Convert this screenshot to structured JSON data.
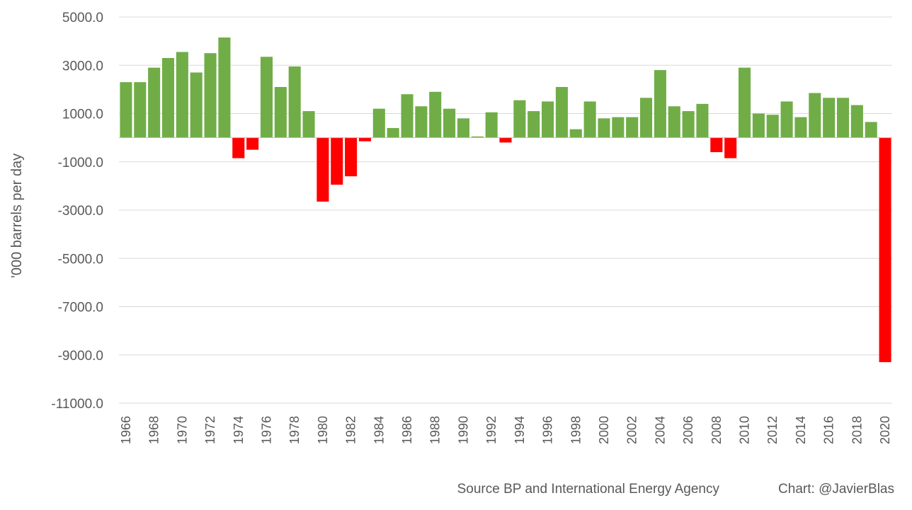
{
  "chart_data": {
    "type": "bar",
    "title": "",
    "xlabel": "",
    "ylabel": "'000 barrels per day",
    "ylim": [
      -11000,
      5000
    ],
    "ytick_values": [
      5000,
      3000,
      1000,
      -1000,
      -3000,
      -5000,
      -7000,
      -9000,
      -11000
    ],
    "ytick_labels": [
      "5000.0",
      "3000.0",
      "1000.0",
      "-1000.0",
      "-3000.0",
      "-5000.0",
      "-7000.0",
      "-9000.0",
      "-11000.0"
    ],
    "grid": true,
    "legend": "none",
    "colors": {
      "positive": "#70ad47",
      "negative": "#ff0000"
    },
    "categories": [
      "1966",
      "1967",
      "1968",
      "1969",
      "1970",
      "1971",
      "1972",
      "1973",
      "1974",
      "1975",
      "1976",
      "1977",
      "1978",
      "1979",
      "1980",
      "1981",
      "1982",
      "1983",
      "1984",
      "1985",
      "1986",
      "1987",
      "1988",
      "1989",
      "1990",
      "1991",
      "1992",
      "1993",
      "1994",
      "1995",
      "1996",
      "1997",
      "1998",
      "1999",
      "2000",
      "2001",
      "2002",
      "2003",
      "2004",
      "2005",
      "2006",
      "2007",
      "2008",
      "2009",
      "2010",
      "2011",
      "2012",
      "2013",
      "2014",
      "2015",
      "2016",
      "2017",
      "2018",
      "2019",
      "2020"
    ],
    "x_tick_labels": [
      "1966",
      "1968",
      "1970",
      "1972",
      "1974",
      "1976",
      "1978",
      "1980",
      "1982",
      "1984",
      "1986",
      "1988",
      "1990",
      "1992",
      "1994",
      "1996",
      "1998",
      "2000",
      "2002",
      "2004",
      "2006",
      "2008",
      "2010",
      "2012",
      "2014",
      "2016",
      "2018",
      "2020"
    ],
    "values": [
      2300,
      2300,
      2900,
      3300,
      3550,
      2700,
      3500,
      4150,
      -850,
      -500,
      3350,
      2100,
      2950,
      1100,
      -2650,
      -1950,
      -1600,
      -150,
      1200,
      400,
      1800,
      1300,
      1900,
      1200,
      800,
      50,
      1050,
      -200,
      1550,
      1100,
      1500,
      2100,
      350,
      1500,
      800,
      850,
      850,
      1650,
      2800,
      1300,
      1100,
      1400,
      -600,
      -850,
      2900,
      1000,
      950,
      1500,
      850,
      1850,
      1650,
      1650,
      1350,
      650,
      -9300
    ]
  },
  "footer": {
    "source": "Source BP and International Energy Agency",
    "credit": "Chart: @JavierBlas"
  }
}
